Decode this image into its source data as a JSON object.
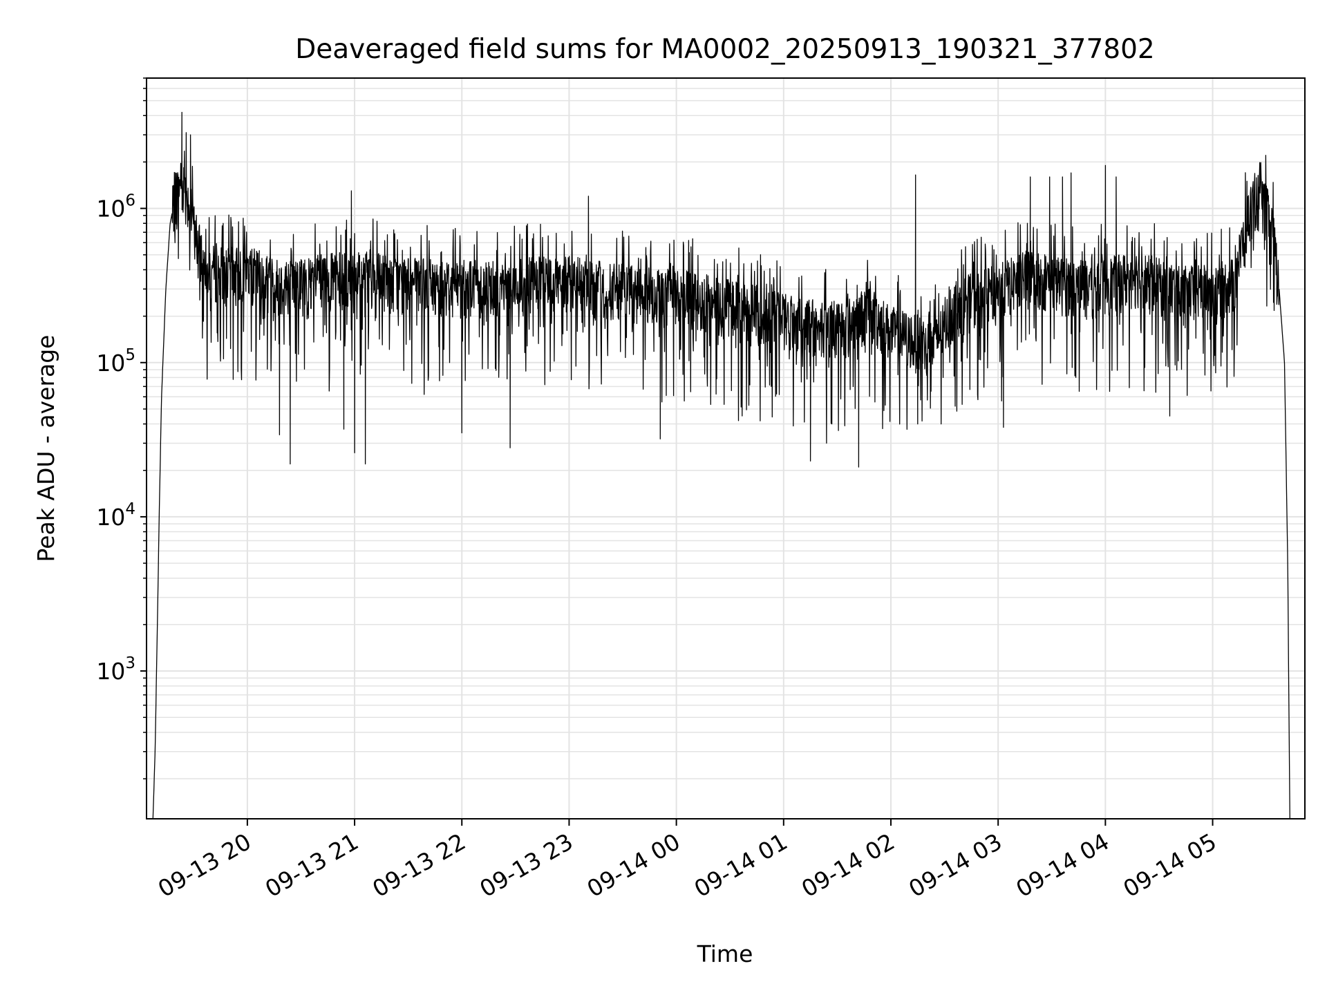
{
  "chart_data": {
    "type": "line",
    "title": "Deaveraged field sums for MA0002_20250913_190321_377802",
    "xlabel": "Time",
    "ylabel": "Peak ADU - average",
    "yscale": "log",
    "ylim": [
      110,
      7000000
    ],
    "xlim_hours": [
      19.06,
      29.86
    ],
    "grid": true,
    "line_color": "#000000",
    "x_ticks": [
      {
        "hour": 20,
        "label": "09-13 20"
      },
      {
        "hour": 21,
        "label": "09-13 21"
      },
      {
        "hour": 22,
        "label": "09-13 22"
      },
      {
        "hour": 23,
        "label": "09-13 23"
      },
      {
        "hour": 24,
        "label": "09-14 00"
      },
      {
        "hour": 25,
        "label": "09-14 01"
      },
      {
        "hour": 26,
        "label": "09-14 02"
      },
      {
        "hour": 27,
        "label": "09-14 03"
      },
      {
        "hour": 28,
        "label": "09-14 04"
      },
      {
        "hour": 29,
        "label": "09-14 05"
      }
    ],
    "y_ticks": [
      {
        "value": 1000,
        "base": "10",
        "exp": "3"
      },
      {
        "value": 10000,
        "base": "10",
        "exp": "4"
      },
      {
        "value": 100000,
        "base": "10",
        "exp": "5"
      },
      {
        "value": 1000000,
        "base": "10",
        "exp": "6"
      }
    ],
    "series": [
      {
        "name": "deaveraged field sum",
        "baseline": [
          [
            19.12,
            110
          ],
          [
            19.14,
            300
          ],
          [
            19.16,
            1800
          ],
          [
            19.18,
            12000
          ],
          [
            19.2,
            60000
          ],
          [
            19.24,
            300000
          ],
          [
            19.28,
            800000
          ],
          [
            19.33,
            1200000
          ],
          [
            19.38,
            1500000
          ],
          [
            19.43,
            1300000
          ],
          [
            19.48,
            900000
          ],
          [
            19.55,
            550000
          ],
          [
            19.65,
            400000
          ],
          [
            19.8,
            380000
          ],
          [
            20.0,
            400000
          ],
          [
            20.3,
            320000
          ],
          [
            20.6,
            340000
          ],
          [
            21.0,
            370000
          ],
          [
            21.5,
            330000
          ],
          [
            22.0,
            320000
          ],
          [
            22.5,
            330000
          ],
          [
            23.0,
            340000
          ],
          [
            23.5,
            300000
          ],
          [
            24.0,
            280000
          ],
          [
            24.5,
            240000
          ],
          [
            25.0,
            200000
          ],
          [
            25.3,
            175000
          ],
          [
            25.6,
            180000
          ],
          [
            25.8,
            220000
          ],
          [
            26.0,
            160000
          ],
          [
            26.4,
            130000
          ],
          [
            26.5,
            170000
          ],
          [
            26.6,
            240000
          ],
          [
            27.0,
            300000
          ],
          [
            27.3,
            380000
          ],
          [
            27.6,
            330000
          ],
          [
            28.0,
            330000
          ],
          [
            28.3,
            370000
          ],
          [
            28.7,
            290000
          ],
          [
            29.0,
            300000
          ],
          [
            29.2,
            330000
          ],
          [
            29.3,
            700000
          ],
          [
            29.35,
            1000000
          ],
          [
            29.4,
            1200000
          ],
          [
            29.48,
            1050000
          ],
          [
            29.55,
            800000
          ],
          [
            29.62,
            300000
          ],
          [
            29.67,
            100000
          ],
          [
            29.7,
            5000
          ],
          [
            29.72,
            110
          ]
        ],
        "spikes": [
          [
            19.39,
            4200000
          ],
          [
            19.43,
            3100000
          ],
          [
            19.47,
            3000000
          ],
          [
            19.33,
            1700000
          ],
          [
            20.97,
            1300000
          ],
          [
            23.18,
            1200000
          ],
          [
            26.23,
            1650000
          ],
          [
            27.3,
            1600000
          ],
          [
            27.48,
            1600000
          ],
          [
            27.6,
            1600000
          ],
          [
            27.68,
            1700000
          ],
          [
            28.0,
            1900000
          ],
          [
            28.1,
            1600000
          ],
          [
            29.32,
            1500000
          ],
          [
            20.4,
            22000
          ],
          [
            21.1,
            22000
          ],
          [
            20.3,
            34000
          ],
          [
            23.85,
            32000
          ],
          [
            21.0,
            26000
          ],
          [
            22.45,
            28000
          ],
          [
            25.25,
            23000
          ],
          [
            25.7,
            21000
          ],
          [
            25.4,
            30000
          ],
          [
            25.45,
            40000
          ],
          [
            26.25,
            40000
          ],
          [
            20.9,
            37000
          ],
          [
            22.0,
            35000
          ],
          [
            27.05,
            38000
          ],
          [
            28.6,
            45000
          ]
        ]
      }
    ]
  }
}
